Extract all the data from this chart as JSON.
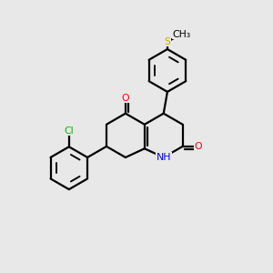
{
  "bg_color": "#e8e8e8",
  "line_color": "#000000",
  "bond_width": 1.6,
  "atom_colors": {
    "O": "#ff0000",
    "N": "#0000ff",
    "Cl": "#00bb00",
    "S": "#ccaa00"
  },
  "figsize": [
    3.0,
    3.0
  ],
  "dpi": 100
}
